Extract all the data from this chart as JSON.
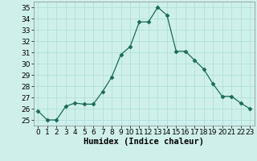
{
  "x": [
    0,
    1,
    2,
    3,
    4,
    5,
    6,
    7,
    8,
    9,
    10,
    11,
    12,
    13,
    14,
    15,
    16,
    17,
    18,
    19,
    20,
    21,
    22,
    23
  ],
  "y": [
    25.8,
    25.0,
    25.0,
    26.2,
    26.5,
    26.4,
    26.4,
    27.5,
    28.8,
    30.8,
    31.5,
    33.7,
    33.7,
    35.0,
    34.3,
    31.1,
    31.1,
    30.3,
    29.5,
    28.2,
    27.1,
    27.1,
    26.5,
    26.0
  ],
  "line_color": "#1a6b5a",
  "marker": "D",
  "marker_size": 2.5,
  "bg_color": "#cff0ea",
  "grid_color": "#aaddd6",
  "xlabel": "Humidex (Indice chaleur)",
  "xlim": [
    -0.5,
    23.5
  ],
  "ylim": [
    24.5,
    35.5
  ],
  "yticks": [
    25,
    26,
    27,
    28,
    29,
    30,
    31,
    32,
    33,
    34,
    35
  ],
  "xticks": [
    0,
    1,
    2,
    3,
    4,
    5,
    6,
    7,
    8,
    9,
    10,
    11,
    12,
    13,
    14,
    15,
    16,
    17,
    18,
    19,
    20,
    21,
    22,
    23
  ],
  "xlabel_fontsize": 7.5,
  "tick_fontsize": 6.5
}
